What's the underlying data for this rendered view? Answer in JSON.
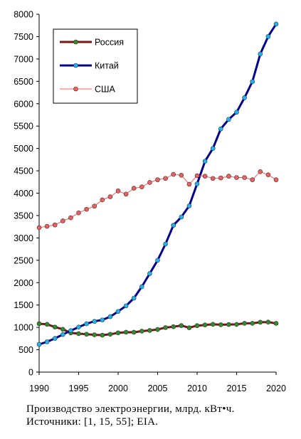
{
  "caption": {
    "line1": "Производство электроэнергии, млрд. кВт•ч.",
    "line2": "Источники: [1, 15, 55]; EIA."
  },
  "chart_data": {
    "type": "line",
    "title": "",
    "xlabel": "",
    "ylabel": "",
    "xlim": [
      1990,
      2020
    ],
    "ylim": [
      0,
      8000
    ],
    "x_ticks": [
      1990,
      1995,
      2000,
      2005,
      2010,
      2015,
      2020
    ],
    "y_ticks": [
      0,
      500,
      1000,
      1500,
      2000,
      2500,
      3000,
      3500,
      4000,
      4500,
      5000,
      5500,
      6000,
      6500,
      7000,
      7500,
      8000
    ],
    "grid": false,
    "legend_position": "top-left",
    "x": [
      1990,
      1991,
      1992,
      1993,
      1994,
      1995,
      1996,
      1997,
      1998,
      1999,
      2000,
      2001,
      2002,
      2003,
      2004,
      2005,
      2006,
      2007,
      2008,
      2009,
      2010,
      2011,
      2012,
      2013,
      2014,
      2015,
      2016,
      2017,
      2018,
      2019,
      2020
    ],
    "series": [
      {
        "name": "Россия",
        "line_color": "#7a1414",
        "marker_color": "#2e8b2e",
        "values": [
          1082,
          1068,
          1008,
          957,
          876,
          860,
          847,
          834,
          827,
          846,
          878,
          891,
          891,
          916,
          932,
          953,
          996,
          1015,
          1040,
          992,
          1038,
          1055,
          1069,
          1059,
          1064,
          1067,
          1091,
          1091,
          1115,
          1118,
          1090
        ]
      },
      {
        "name": "Китай",
        "line_color": "#00008b",
        "marker_color": "#1fb4f0",
        "values": [
          621,
          678,
          754,
          840,
          928,
          1007,
          1081,
          1135,
          1167,
          1239,
          1356,
          1481,
          1654,
          1910,
          2203,
          2500,
          2865,
          3282,
          3467,
          3715,
          4208,
          4713,
          5000,
          5437,
          5650,
          5810,
          6133,
          6495,
          7112,
          7503,
          7780
        ]
      },
      {
        "name": "США",
        "line_color": "#f06060",
        "marker_color": "#f06060",
        "values": [
          3230,
          3260,
          3290,
          3380,
          3450,
          3560,
          3640,
          3710,
          3850,
          3920,
          4050,
          3980,
          4110,
          4140,
          4240,
          4300,
          4330,
          4420,
          4400,
          4200,
          4390,
          4380,
          4330,
          4340,
          4380,
          4350,
          4350,
          4300,
          4480,
          4410,
          4300
        ]
      }
    ]
  }
}
